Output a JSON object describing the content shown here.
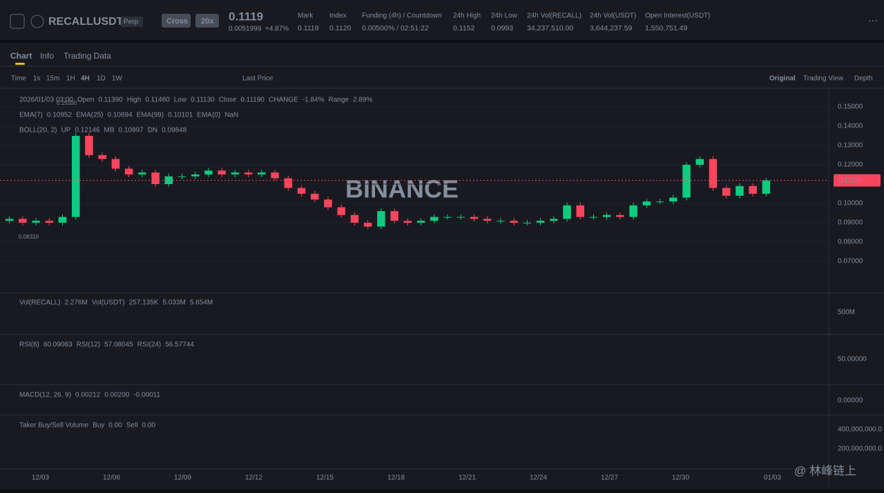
{
  "header": {
    "symbol": "RECALLUSDT",
    "contract": "Perp",
    "margin": "Cross",
    "leverage": "20x",
    "price": "0.1119",
    "change": "0.0051999",
    "change_pct": "+4.87%",
    "stats": [
      {
        "label": "Mark",
        "value": "0.1119"
      },
      {
        "label": "Index",
        "value": "0.1120"
      },
      {
        "label": "Funding (4h) / Countdown",
        "value": "0.00500%",
        "extra": "/ 02:51:22"
      },
      {
        "label": "24h High",
        "value": "0.1152"
      },
      {
        "label": "24h Low",
        "value": "0.0993"
      },
      {
        "label": "24h Vol(RECALL)",
        "value": "34,237,510.00"
      },
      {
        "label": "24h Vol(USDT)",
        "value": "3,644,237.59"
      },
      {
        "label": "Open Interest(USDT)",
        "value": "1,550,751.49"
      }
    ]
  },
  "tabs": [
    "Chart",
    "Info",
    "Trading Data"
  ],
  "toolbar": {
    "intervals": [
      "Time",
      "1s",
      "15m",
      "1H",
      "4H",
      "1D",
      "1W"
    ],
    "price_type": "Last Price",
    "views": [
      "Original",
      "Trading View",
      "Depth"
    ]
  },
  "legend": {
    "ohlc": [
      "2026/01/03 03:00",
      "Open",
      "0.11390",
      "High",
      "0.11460",
      "Low",
      "0.11130",
      "Close",
      "0.11190",
      "CHANGE",
      "-1.84%",
      "Range",
      "2.89%"
    ],
    "ema": [
      "EMA(7)",
      "0.10952",
      "EMA(25)",
      "0.10694",
      "EMA(99)",
      "0.10101",
      "EMA(0)",
      "NaN"
    ],
    "boll": [
      "BOLL(20, 2)",
      "UP",
      "0.12146",
      "MB",
      "0.10997",
      "DN",
      "0.09848"
    ],
    "vol": [
      "Vol(RECALL)",
      "2.276M",
      "Vol(USDT)",
      "257.135K",
      "5.033M",
      "5.654M"
    ],
    "rsi": [
      "RSI(6)",
      "60.09083",
      "RSI(12)",
      "57.08045",
      "RSI(24)",
      "56.57744"
    ],
    "macd": [
      "MACD(12, 26, 9)",
      "0.00212",
      "0.00200",
      "-0.00011"
    ],
    "taker": [
      "Taker Buy/Sell Volume",
      "Buy",
      "0.00",
      "Sell",
      "0.00"
    ]
  },
  "chart": {
    "type": "candlestick",
    "up_color": "#0ecb81",
    "down_color": "#f6465d",
    "close": [
      0.092,
      0.09,
      0.091,
      0.09,
      0.093,
      0.135,
      0.125,
      0.123,
      0.118,
      0.115,
      0.116,
      0.11,
      0.114,
      0.114,
      0.115,
      0.117,
      0.115,
      0.116,
      0.115,
      0.116,
      0.113,
      0.108,
      0.105,
      0.102,
      0.098,
      0.094,
      0.09,
      0.088,
      0.096,
      0.091,
      0.09,
      0.091,
      0.093,
      0.093,
      0.093,
      0.092,
      0.091,
      0.091,
      0.09,
      0.09,
      0.091,
      0.092,
      0.099,
      0.093,
      0.093,
      0.094,
      0.093,
      0.099,
      0.101,
      0.101,
      0.103,
      0.12,
      0.123,
      0.108,
      0.104,
      0.109,
      0.105,
      0.1119
    ],
    "ylim": [
      0.0536,
      0.1589
    ],
    "yticks": [
      {
        "value": 0.15,
        "label": "0.15000"
      },
      {
        "value": 0.14,
        "label": "0.14000"
      },
      {
        "value": 0.13,
        "label": "0.13000"
      },
      {
        "value": 0.12,
        "label": "0.12000"
      },
      {
        "value": 0.11,
        "label": "0.11000"
      },
      {
        "value": 0.1,
        "label": "0.10000"
      },
      {
        "value": 0.09,
        "label": "0.09000"
      },
      {
        "value": 0.08,
        "label": "0.08000"
      },
      {
        "value": 0.07,
        "label": "0.07000"
      }
    ],
    "x_labels": [
      "12/03",
      "12/06",
      "12/09",
      "12/12",
      "12/15",
      "12/18",
      "12/21",
      "12/24",
      "12/27",
      "12/30",
      "01/03"
    ],
    "high_label": "0.15100",
    "low_label": "0.08310",
    "last_price_tag": "0.11190",
    "pane_labels": [
      "500M",
      "50.00000",
      "0.00000",
      "400,000,000.0",
      "200,000,000.0"
    ],
    "watermark": "BINANCE"
  },
  "footer": {
    "credit": "@ 林峰链上"
  }
}
